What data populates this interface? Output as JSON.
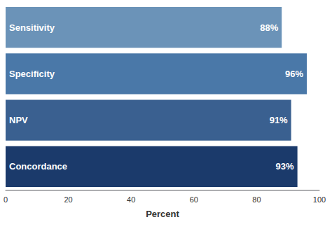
{
  "chart_data": {
    "type": "bar",
    "orientation": "horizontal",
    "categories": [
      "Concordance",
      "NPV",
      "Specificity",
      "Sensitivity"
    ],
    "values": [
      93,
      91,
      96,
      88
    ],
    "value_labels": [
      "93%",
      "91%",
      "96%",
      "88%"
    ],
    "colors": [
      "#1b3a6b",
      "#3a6090",
      "#4a78a8",
      "#6b93b8"
    ],
    "xlabel": "Percent",
    "xlim": [
      0,
      100
    ],
    "xticks": [
      0,
      20,
      40,
      60,
      80,
      100
    ],
    "grid": false,
    "data_labels": true,
    "tick_labels": "x"
  }
}
